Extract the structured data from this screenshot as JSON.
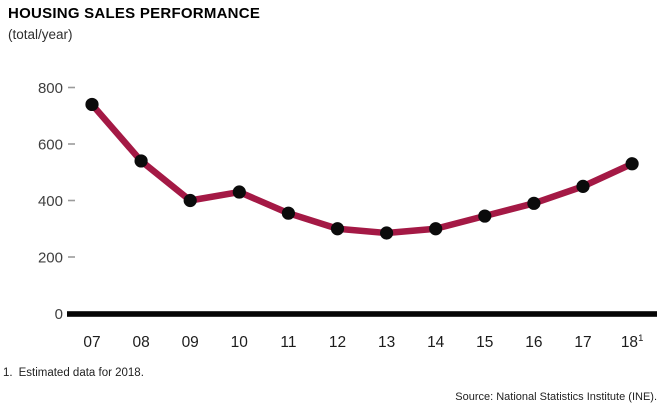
{
  "colors": {
    "line": "#A41945",
    "point": "#0b0b0b",
    "axis": "#050505",
    "tick": "#9b9b9b",
    "y_label": "#3f3f3f",
    "x_label": "#1c1c1c"
  },
  "chart_data": {
    "type": "line",
    "title": "HOUSING SALES PERFORMANCE",
    "subtitle": "(total/year)",
    "categories": [
      "07",
      "08",
      "09",
      "10",
      "11",
      "12",
      "13",
      "14",
      "15",
      "16",
      "17",
      "18"
    ],
    "values": [
      740,
      540,
      400,
      430,
      355,
      300,
      285,
      300,
      345,
      390,
      450,
      530
    ],
    "x_last_superscript": "1",
    "ylim": [
      0,
      800
    ],
    "yticks": [
      0,
      200,
      400,
      600,
      800
    ],
    "grid": false,
    "legend": false,
    "footnote_marker": "1.",
    "footnote_text": "Estimated data for 2018.",
    "source": "Source: National Statistics Institute (INE)."
  }
}
